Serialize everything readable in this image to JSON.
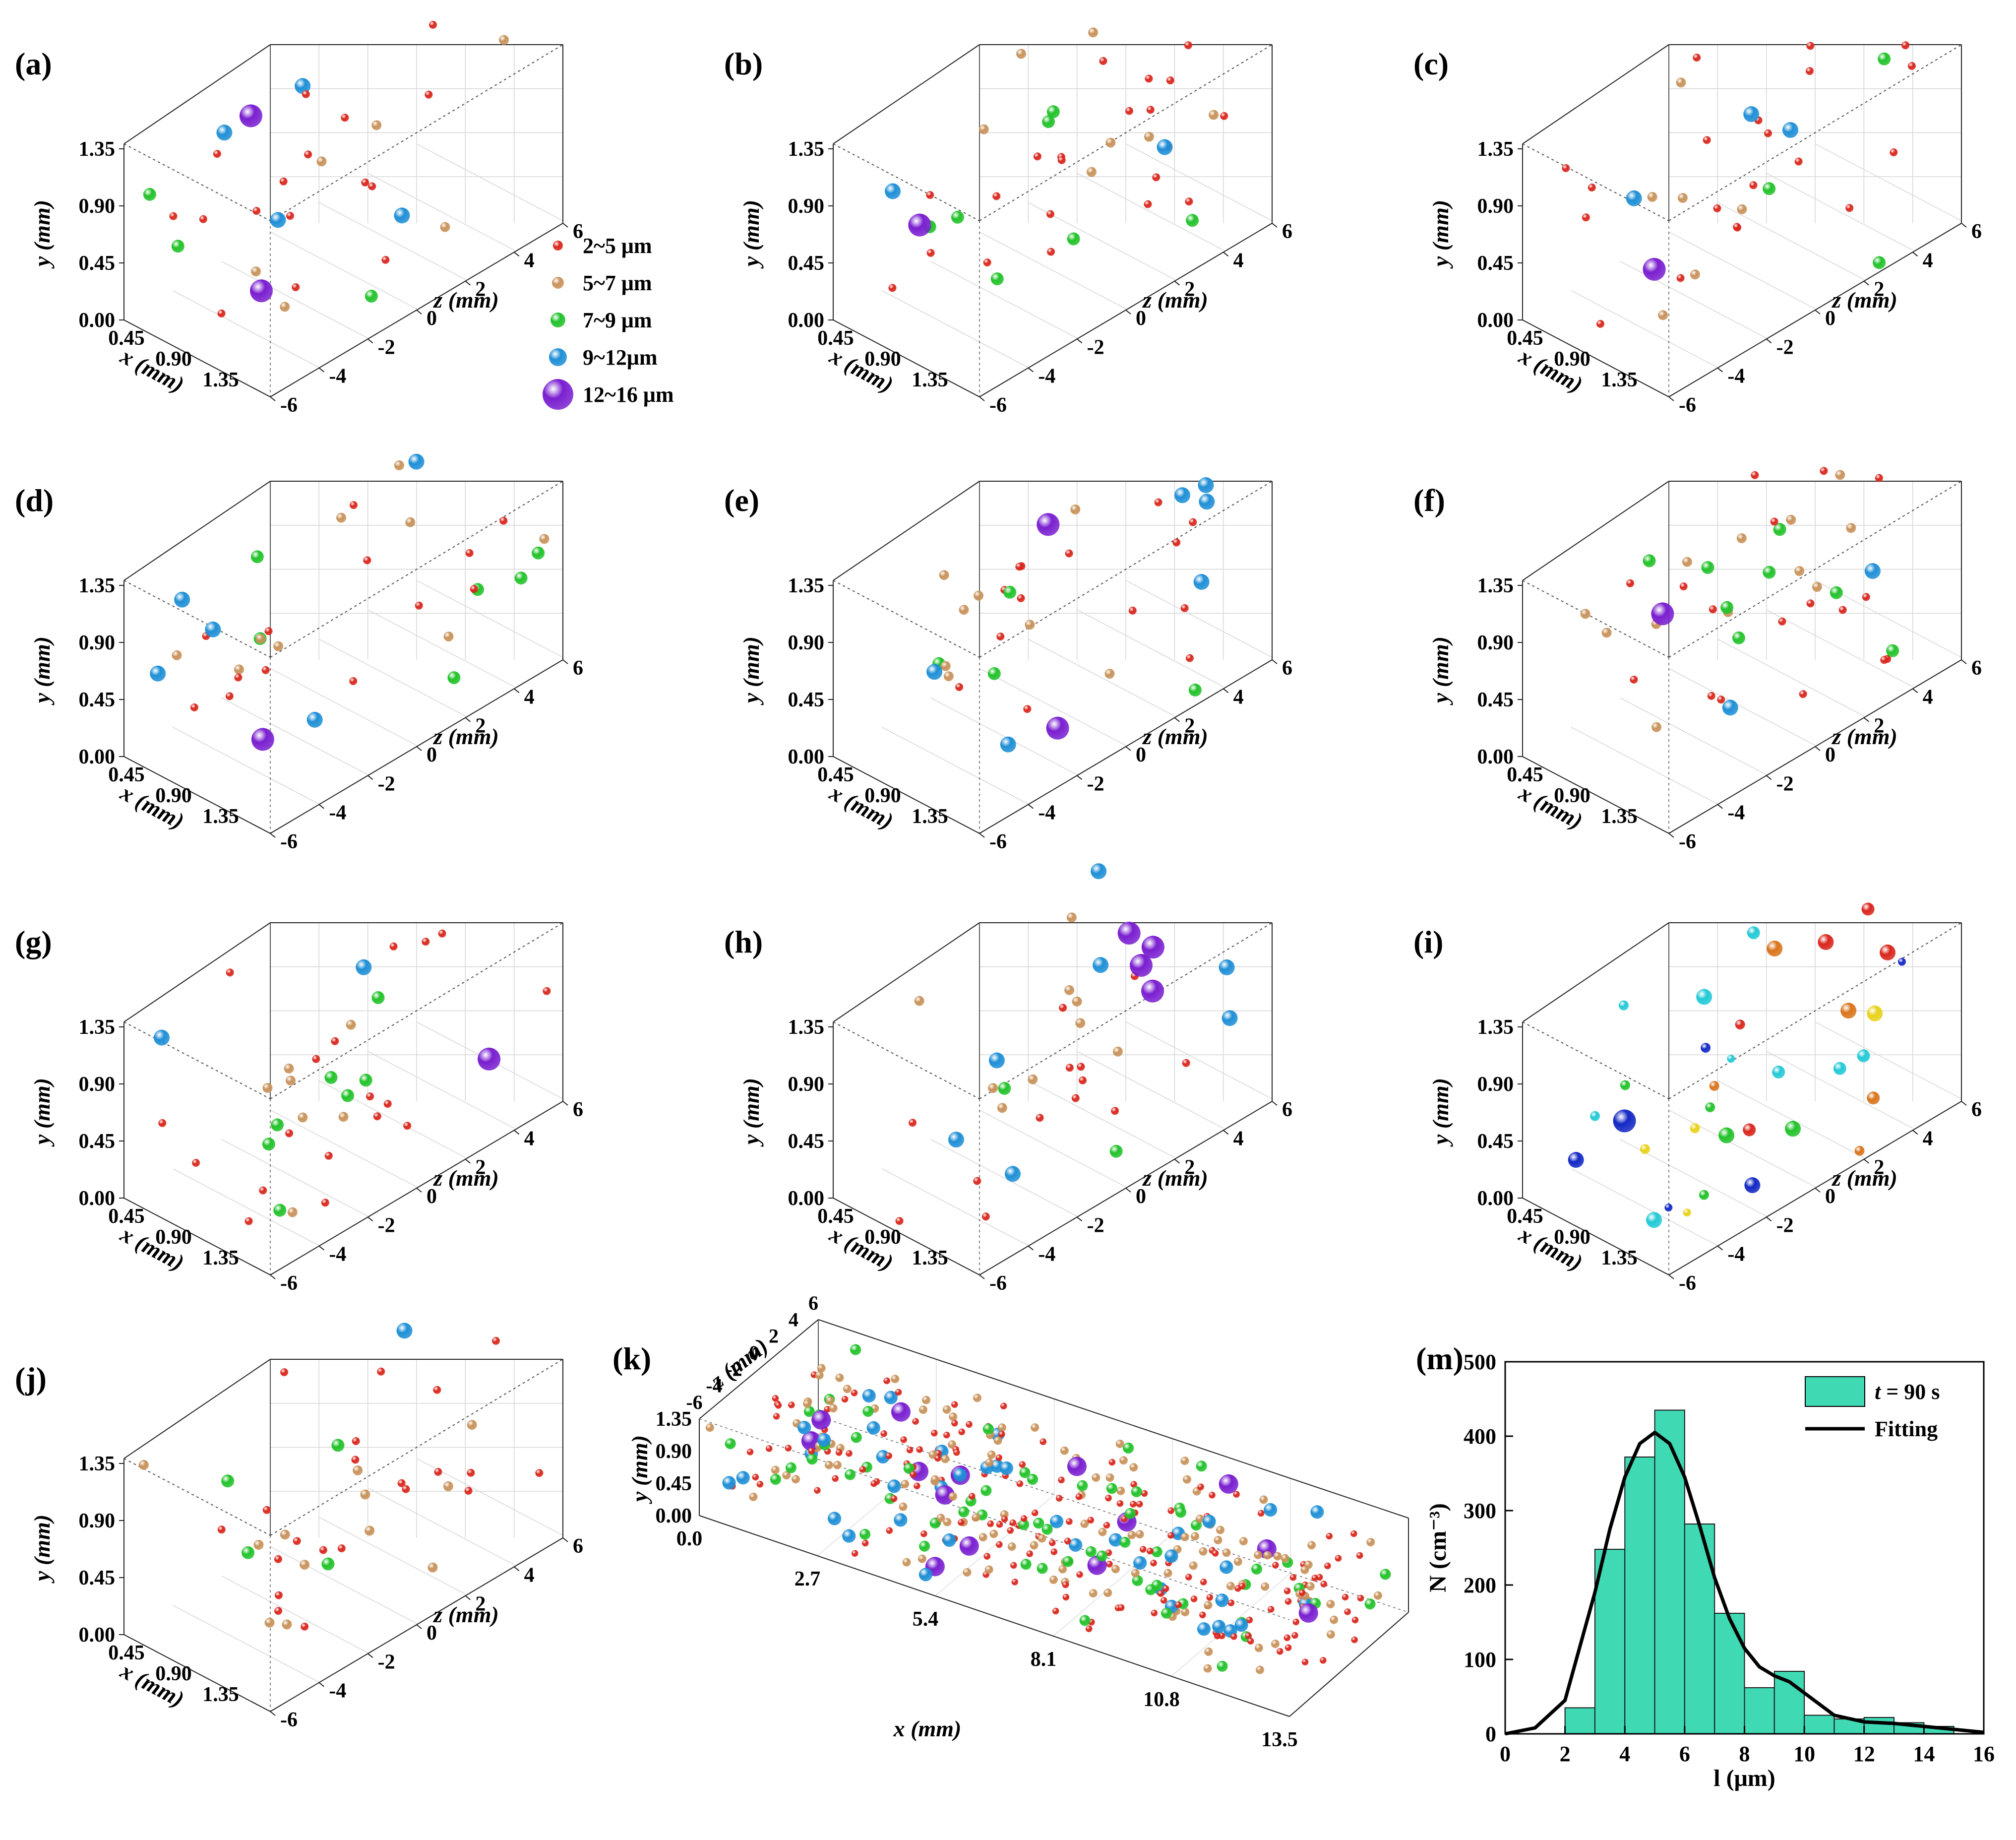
{
  "figure": {
    "panel_letters": [
      "(a)",
      "(b)",
      "(c)",
      "(d)",
      "(e)",
      "(f)",
      "(g)",
      "(h)",
      "(i)",
      "(j)",
      "(k)",
      "(m)"
    ]
  },
  "axes3d": {
    "x_label": "x (mm)",
    "y_label": "y (mm)",
    "z_label": "z (mm)",
    "x_ticks": [
      "0.45",
      "0.90",
      "1.35"
    ],
    "y_ticks": [
      "0.00",
      "0.45",
      "0.90",
      "1.35"
    ],
    "z_ticks": [
      "-6",
      "-4",
      "-2",
      "0",
      "2",
      "4",
      "6"
    ]
  },
  "legend": {
    "items": [
      {
        "label": "2~5 μm",
        "color": "#d9261c"
      },
      {
        "label": "5~7 μm",
        "color": "#c8925a"
      },
      {
        "label": "7~9 μm",
        "color": "#22c22a"
      },
      {
        "label": "9~12μm",
        "color": "#1f8fd6"
      },
      {
        "label": "12~16 μm",
        "color": "#7a1fd0"
      }
    ]
  },
  "panel_i_colors": [
    "#d9261c",
    "#d9741c",
    "#e8d21a",
    "#22c22a",
    "#22c9d6",
    "#1228c4"
  ],
  "panel_k": {
    "x_label": "x (mm)",
    "y_label": "y (mm)",
    "z_label": "z (mm)",
    "x_ticks": [
      "0.0",
      "2.7",
      "5.4",
      "8.1",
      "10.8",
      "13.5"
    ],
    "y_ticks": [
      "0.00",
      "0.45",
      "0.90",
      "1.35"
    ],
    "z_ticks": [
      "-6",
      "-4",
      "-2",
      "0",
      "2",
      "4",
      "6"
    ]
  },
  "chart_data": {
    "type": "bar",
    "title": "",
    "xlabel": "l (μm)",
    "ylabel": "N (cm⁻³)",
    "xlim": [
      0,
      16
    ],
    "ylim": [
      0,
      500
    ],
    "x_ticks": [
      "0",
      "2",
      "4",
      "6",
      "8",
      "10",
      "12",
      "14",
      "16"
    ],
    "y_ticks": [
      "0",
      "100",
      "200",
      "300",
      "400",
      "500"
    ],
    "bin_edges": [
      2,
      3,
      4,
      5,
      6,
      7,
      8,
      9,
      10,
      11,
      12,
      13,
      14,
      15
    ],
    "values": [
      35,
      248,
      372,
      435,
      282,
      162,
      62,
      84,
      25,
      20,
      22,
      15,
      10
    ],
    "bar_color": "#3fd9b4",
    "fit_curve": {
      "x": [
        0,
        1,
        2,
        3,
        3.5,
        4,
        4.5,
        5,
        5.5,
        6,
        6.5,
        7,
        7.5,
        8,
        8.5,
        9,
        9.5,
        10,
        11,
        12,
        13,
        14,
        15,
        16
      ],
      "y": [
        0,
        8,
        45,
        190,
        275,
        345,
        390,
        405,
        390,
        345,
        280,
        210,
        155,
        115,
        90,
        78,
        70,
        55,
        25,
        16,
        14,
        10,
        6,
        2
      ]
    },
    "legend": [
      {
        "label_prefix": "t",
        "label": " = 90 s",
        "kind": "bar"
      },
      {
        "label": "Fitting",
        "kind": "line"
      }
    ],
    "legend_position": "top-right"
  }
}
